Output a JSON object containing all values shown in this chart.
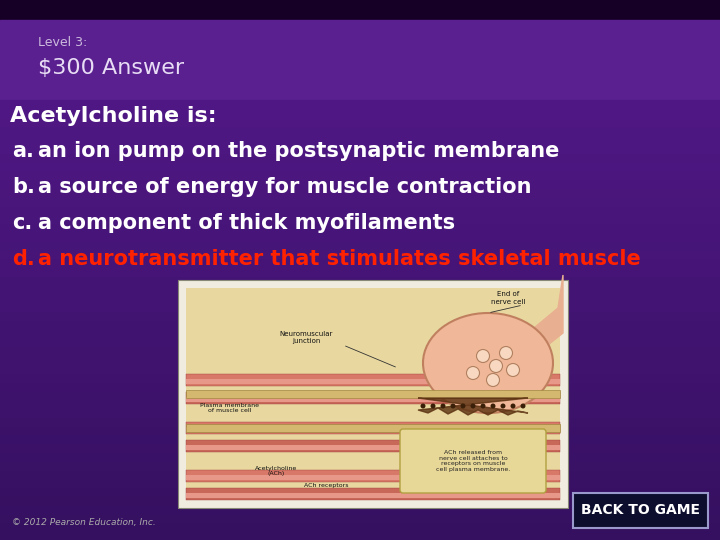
{
  "bg_very_dark": "#160025",
  "bg_header": "#5a2090",
  "bg_main": "#4a1878",
  "bg_lower": "#3d1468",
  "header_label": "Level 3:",
  "header_title": "$300 Answer",
  "question": "Acetylcholine is:",
  "answers": [
    {
      "letter": "a.",
      "text": "  an ion pump on the postsynaptic membrane",
      "color": "#ffffff"
    },
    {
      "letter": "b.",
      "text": "  a source of energy for muscle contraction",
      "color": "#ffffff"
    },
    {
      "letter": "c.",
      "text": "  a component of thick myofilaments",
      "color": "#ffffff"
    },
    {
      "letter": "d.",
      "text": "  a neurotransmitter that stimulates skeletal muscle",
      "color": "#ff2200"
    }
  ],
  "back_btn_text": "BACK TO GAME",
  "back_btn_bg": "#0d0d2e",
  "back_btn_border": "#9999cc",
  "copyright": "© 2012 Pearson Education, Inc.",
  "header_label_fontsize": 9,
  "header_title_fontsize": 16,
  "question_fontsize": 16,
  "answer_fontsize": 15,
  "fig_width": 7.2,
  "fig_height": 5.4,
  "dpi": 100
}
